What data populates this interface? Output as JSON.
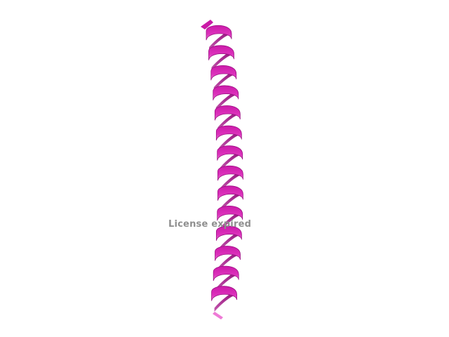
{
  "watermark": {
    "text": "License expired"
  },
  "colors": {
    "background": "#ffffff",
    "helix_top": "#d61fb3",
    "helix_bottom": "#ef72d8",
    "helix_back": "#a3128a",
    "watermark": "#8f8f8f"
  }
}
